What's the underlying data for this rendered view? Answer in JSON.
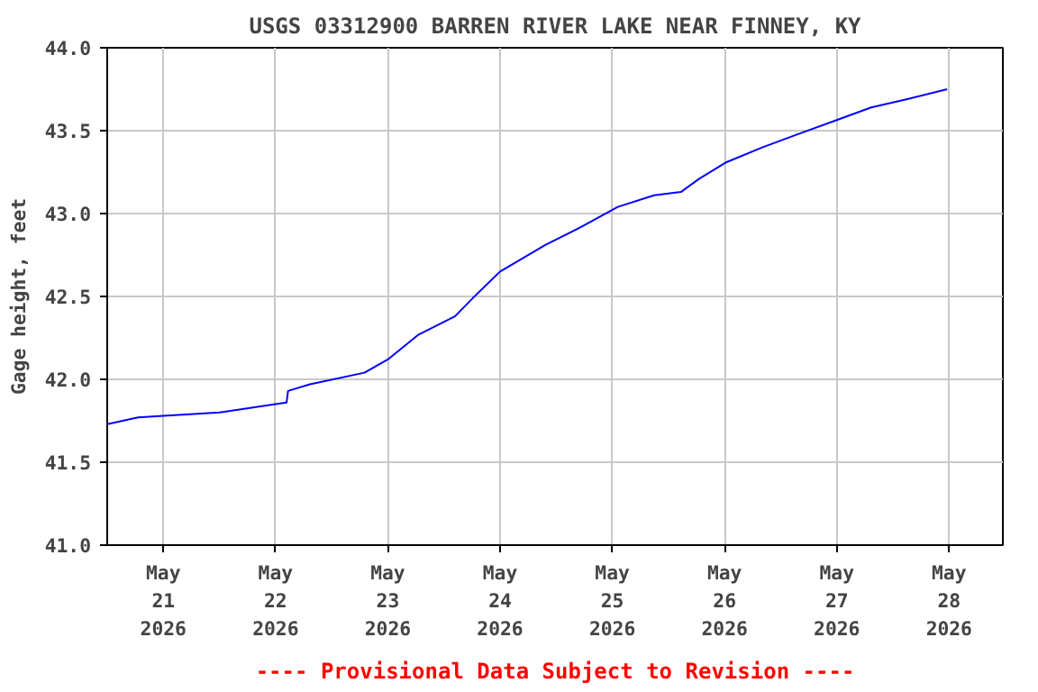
{
  "chart_data": {
    "type": "line",
    "title": "USGS 03312900 BARREN RIVER LAKE NEAR FINNEY, KY",
    "ylabel": "Gage height, feet",
    "annotations": [
      "---- Provisional Data Subject to Revision ----"
    ],
    "series": [
      {
        "color": "#0000ff",
        "x": [
          "2026-05-20T12:00",
          "2026-05-20T18:35",
          "2026-05-21T00:00",
          "2026-05-21T12:00",
          "2026-05-22T00:00",
          "2026-05-22T02:20",
          "2026-05-22T02:40",
          "2026-05-22T07:20",
          "2026-05-22T19:00",
          "2026-05-23T00:00",
          "2026-05-23T06:35",
          "2026-05-23T14:20",
          "2026-05-23T18:10",
          "2026-05-24T00:00",
          "2026-05-24T09:40",
          "2026-05-24T17:25",
          "2026-05-25T01:10",
          "2026-05-25T08:55",
          "2026-05-25T14:40",
          "2026-05-25T18:35",
          "2026-05-26T00:25",
          "2026-05-26T08:10",
          "2026-05-26T15:50",
          "2026-05-26T23:35",
          "2026-05-27T07:20",
          "2026-05-27T15:05",
          "2026-05-27T23:35"
        ],
        "values": [
          41.73,
          41.77,
          41.78,
          41.8,
          41.85,
          41.86,
          41.93,
          41.97,
          42.04,
          42.12,
          42.27,
          42.38,
          42.49,
          42.65,
          42.81,
          42.92,
          43.04,
          43.11,
          43.13,
          43.21,
          43.31,
          43.4,
          43.48,
          43.56,
          43.64,
          43.69,
          43.75
        ]
      }
    ],
    "xlim": [
      "2026-05-20T12:00",
      "2026-05-28T11:30"
    ],
    "xticks": [
      {
        "value": "2026-05-21",
        "label": "May\n21\n2026"
      },
      {
        "value": "2026-05-22",
        "label": "May\n22\n2026"
      },
      {
        "value": "2026-05-23",
        "label": "May\n23\n2026"
      },
      {
        "value": "2026-05-24",
        "label": "May\n24\n2026"
      },
      {
        "value": "2026-05-25",
        "label": "May\n25\n2026"
      },
      {
        "value": "2026-05-26",
        "label": "May\n26\n2026"
      },
      {
        "value": "2026-05-27",
        "label": "May\n27\n2026"
      },
      {
        "value": "2026-05-28",
        "label": "May\n28\n2026"
      }
    ],
    "ylim": [
      41.0,
      44.0
    ],
    "yticks": [
      {
        "value": 41.0,
        "label": "41.0"
      },
      {
        "value": 41.5,
        "label": "41.5"
      },
      {
        "value": 42.0,
        "label": "42.0"
      },
      {
        "value": 42.5,
        "label": "42.5"
      },
      {
        "value": 43.0,
        "label": "43.0"
      },
      {
        "value": 43.5,
        "label": "43.5"
      },
      {
        "value": 44.0,
        "label": "44.0"
      }
    ],
    "grid": true
  }
}
